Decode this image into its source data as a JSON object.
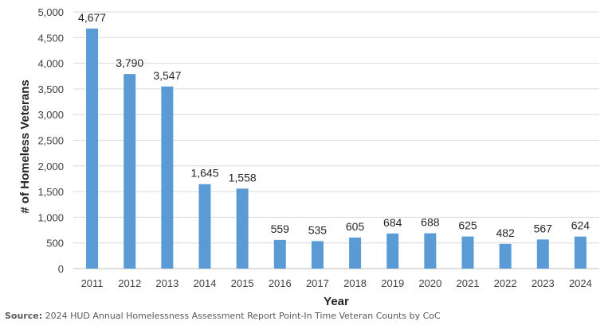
{
  "chart_data": {
    "type": "bar",
    "categories": [
      "2011",
      "2012",
      "2013",
      "2014",
      "2015",
      "2016",
      "2017",
      "2018",
      "2019",
      "2020",
      "2021",
      "2022",
      "2023",
      "2024"
    ],
    "values": [
      4677,
      3790,
      3547,
      1645,
      1558,
      559,
      535,
      605,
      684,
      688,
      625,
      482,
      567,
      624
    ],
    "data_labels": [
      "4,677",
      "3,790",
      "3,547",
      "1,645",
      "1,558",
      "559",
      "535",
      "605",
      "684",
      "688",
      "625",
      "482",
      "567",
      "624"
    ],
    "title": "",
    "xlabel": "Year",
    "ylabel": "# of  Homeless Veterans",
    "ylim": [
      0,
      5000
    ],
    "yticks": [
      0,
      500,
      1000,
      1500,
      2000,
      2500,
      3000,
      3500,
      4000,
      4500,
      5000
    ],
    "ytick_labels": [
      "0",
      "500",
      "1,000",
      "1,500",
      "2,000",
      "2,500",
      "3,000",
      "3,500",
      "4,000",
      "4,500",
      "5,000"
    ],
    "grid": true,
    "legend": "none",
    "bar_color": "#5B9BD5",
    "grid_color": "#D9D9D9"
  },
  "source": {
    "label": "Source:",
    "text": " 2024 HUD Annual Homelessness Assessment Report Point-In Time Veteran Counts by CoC"
  }
}
